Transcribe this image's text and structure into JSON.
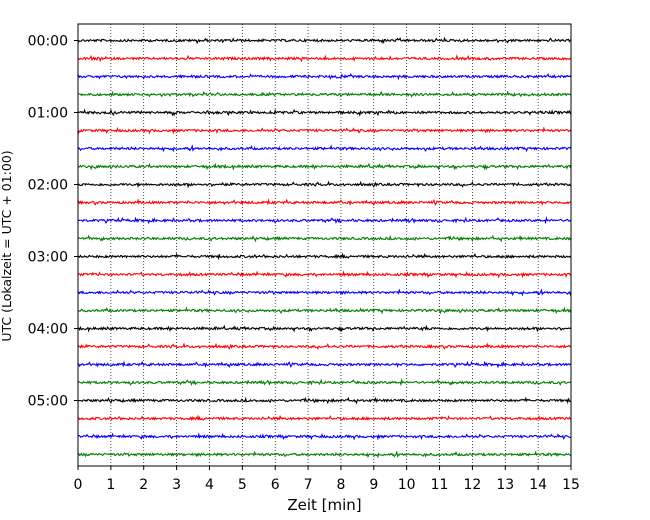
{
  "chart_data": {
    "type": "line",
    "subtype": "helicorder",
    "xlabel": "Zeit  [min]",
    "ylabel": "UTC (Lokalzeit = UTC + 01:00)",
    "xlim": [
      0,
      15
    ],
    "x_ticks": [
      "0",
      "1",
      "2",
      "3",
      "4",
      "5",
      "6",
      "7",
      "8",
      "9",
      "10",
      "11",
      "12",
      "13",
      "14",
      "15"
    ],
    "y_tick_labels": [
      "00:00",
      "01:00",
      "02:00",
      "03:00",
      "04:00",
      "05:00"
    ],
    "trace_minutes": 15,
    "trace_count": 24,
    "trace_start_times": [
      "00:00",
      "00:15",
      "00:30",
      "00:45",
      "01:00",
      "01:15",
      "01:30",
      "01:45",
      "02:00",
      "02:15",
      "02:30",
      "02:45",
      "03:00",
      "03:15",
      "03:30",
      "03:45",
      "04:00",
      "04:15",
      "04:30",
      "04:45",
      "05:00",
      "05:15",
      "05:30",
      "05:45"
    ],
    "trace_colors": [
      "#000000",
      "#ff0000",
      "#0000ff",
      "#007f00"
    ],
    "vertical_grid": true,
    "grid_style": "dotted"
  }
}
